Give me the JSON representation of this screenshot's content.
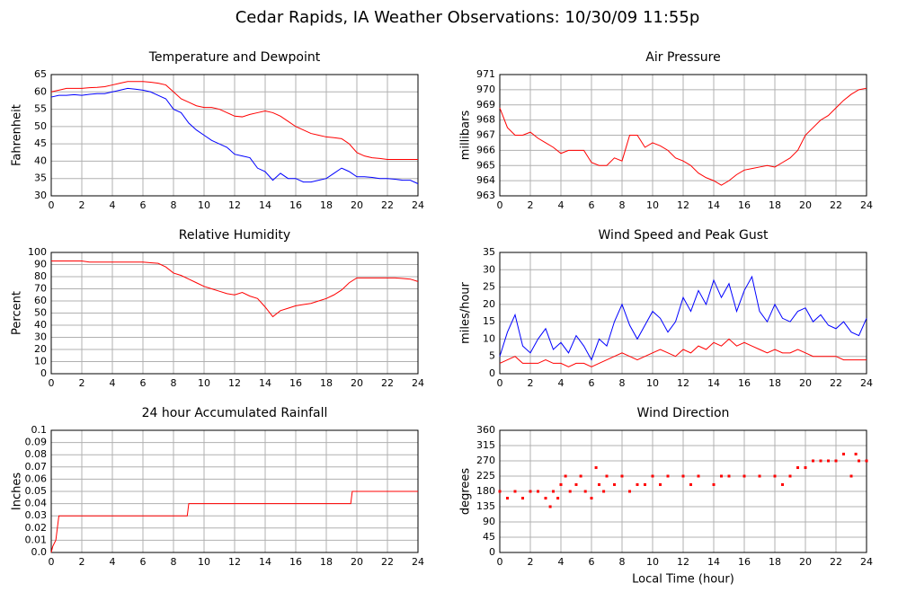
{
  "title": "Cedar Rapids, IA Weather Observations: 10/30/09 11:55p",
  "chart_data": [
    {
      "type": "line",
      "title": "Temperature and Dewpoint",
      "ylabel": "Fahrenheit",
      "x": [
        0,
        0.5,
        1,
        1.5,
        2,
        2.5,
        3,
        3.5,
        4,
        4.5,
        5,
        5.5,
        6,
        6.5,
        7,
        7.5,
        8,
        8.5,
        9,
        9.5,
        10,
        10.5,
        11,
        11.5,
        12,
        12.5,
        13,
        13.5,
        14,
        14.5,
        15,
        15.5,
        16,
        16.5,
        17,
        17.5,
        18,
        18.5,
        19,
        19.5,
        20,
        20.5,
        21,
        21.5,
        22,
        22.5,
        23,
        23.5,
        24
      ],
      "series": [
        {
          "color": "#ff0000",
          "values": [
            60,
            60.5,
            61,
            61,
            61,
            61.2,
            61.3,
            61.5,
            62,
            62.5,
            63,
            63,
            63,
            62.8,
            62.5,
            62,
            60,
            58,
            57,
            56,
            55.5,
            55.5,
            55,
            54,
            53,
            52.8,
            53.5,
            54,
            54.5,
            54,
            53,
            51.5,
            50,
            49,
            48,
            47.5,
            47,
            46.8,
            46.5,
            45,
            42.5,
            41.5,
            41,
            40.8,
            40.5,
            40.5,
            40.5,
            40.5,
            40.5
          ]
        },
        {
          "color": "#0000ff",
          "values": [
            58.5,
            59,
            59,
            59.2,
            59,
            59.3,
            59.5,
            59.5,
            60,
            60.5,
            61,
            60.8,
            60.5,
            60,
            59,
            58,
            55,
            54,
            51,
            49,
            47.5,
            46,
            45,
            44,
            42,
            41.5,
            41,
            38,
            37,
            34.5,
            36.5,
            35,
            35,
            34,
            34,
            34.5,
            35,
            36.5,
            38,
            37,
            35.5,
            35.5,
            35.3,
            35,
            35,
            34.8,
            34.5,
            34.5,
            33.5
          ]
        }
      ],
      "xlim": [
        0,
        24
      ],
      "xticks": [
        0,
        2,
        4,
        6,
        8,
        10,
        12,
        14,
        16,
        18,
        20,
        22,
        24
      ],
      "ylim": [
        30,
        65
      ],
      "yticks": [
        30,
        35,
        40,
        45,
        50,
        55,
        60,
        65
      ],
      "grid": true
    },
    {
      "type": "line",
      "title": "Air Pressure",
      "ylabel": "millibars",
      "x": [
        0,
        0.5,
        1,
        1.5,
        2,
        2.5,
        3,
        3.5,
        4,
        4.5,
        5,
        5.5,
        6,
        6.5,
        7,
        7.5,
        8,
        8.5,
        9,
        9.5,
        10,
        10.5,
        11,
        11.5,
        12,
        12.5,
        13,
        13.5,
        14,
        14.5,
        15,
        15.5,
        16,
        16.5,
        17,
        17.5,
        18,
        18.5,
        19,
        19.5,
        20,
        20.5,
        21,
        21.5,
        22,
        22.5,
        23,
        23.5,
        24
      ],
      "series": [
        {
          "color": "#ff0000",
          "values": [
            968.8,
            967.5,
            967,
            967,
            967.2,
            966.8,
            966.5,
            966.2,
            965.8,
            966,
            966,
            966,
            965.2,
            965,
            965,
            965.5,
            965.3,
            967,
            967,
            966.2,
            966.5,
            966.3,
            966,
            965.5,
            965.3,
            965,
            964.5,
            964.2,
            964,
            963.7,
            964,
            964.4,
            964.7,
            964.8,
            964.9,
            965,
            964.9,
            965.2,
            965.5,
            966,
            967,
            967.5,
            968,
            968.3,
            968.8,
            969.3,
            969.7,
            970,
            970.1
          ]
        }
      ],
      "xlim": [
        0,
        24
      ],
      "xticks": [
        0,
        2,
        4,
        6,
        8,
        10,
        12,
        14,
        16,
        18,
        20,
        22,
        24
      ],
      "ylim": [
        963,
        971
      ],
      "yticks": [
        963,
        964,
        965,
        966,
        967,
        968,
        969,
        970,
        971
      ],
      "grid": true
    },
    {
      "type": "line",
      "title": "Relative Humidity",
      "ylabel": "Percent",
      "x": [
        0,
        0.5,
        1,
        1.5,
        2,
        2.5,
        3,
        3.5,
        4,
        4.5,
        5,
        5.5,
        6,
        6.5,
        7,
        7.5,
        8,
        8.5,
        9,
        9.5,
        10,
        10.5,
        11,
        11.5,
        12,
        12.5,
        13,
        13.5,
        14,
        14.5,
        15,
        15.5,
        16,
        16.5,
        17,
        17.5,
        18,
        18.5,
        19,
        19.5,
        20,
        20.5,
        21,
        21.5,
        22,
        22.5,
        23,
        23.5,
        24
      ],
      "series": [
        {
          "color": "#ff0000",
          "values": [
            93,
            93,
            93,
            93,
            93,
            92,
            92,
            92,
            92,
            92,
            92,
            92,
            92,
            91.5,
            91,
            88,
            83,
            81,
            78,
            75,
            72,
            70,
            68,
            66,
            65,
            67,
            64,
            62,
            55,
            47,
            52,
            54,
            56,
            57,
            58,
            60,
            62,
            65,
            69,
            75,
            79,
            79,
            79,
            79,
            79,
            79,
            78.5,
            78,
            76
          ]
        }
      ],
      "xlim": [
        0,
        24
      ],
      "xticks": [
        0,
        2,
        4,
        6,
        8,
        10,
        12,
        14,
        16,
        18,
        20,
        22,
        24
      ],
      "ylim": [
        0,
        100
      ],
      "yticks": [
        0,
        10,
        20,
        30,
        40,
        50,
        60,
        70,
        80,
        90,
        100
      ],
      "grid": true
    },
    {
      "type": "line",
      "title": "Wind Speed and Peak Gust",
      "ylabel": "miles/hour",
      "x": [
        0,
        0.5,
        1,
        1.5,
        2,
        2.5,
        3,
        3.5,
        4,
        4.5,
        5,
        5.5,
        6,
        6.5,
        7,
        7.5,
        8,
        8.5,
        9,
        9.5,
        10,
        10.5,
        11,
        11.5,
        12,
        12.5,
        13,
        13.5,
        14,
        14.5,
        15,
        15.5,
        16,
        16.5,
        17,
        17.5,
        18,
        18.5,
        19,
        19.5,
        20,
        20.5,
        21,
        21.5,
        22,
        22.5,
        23,
        23.5,
        24
      ],
      "series": [
        {
          "color": "#0000ff",
          "values": [
            5,
            12,
            17,
            8,
            6,
            10,
            13,
            7,
            9,
            6,
            11,
            8,
            4,
            10,
            8,
            15,
            20,
            14,
            10,
            14,
            18,
            16,
            12,
            15,
            22,
            18,
            24,
            20,
            27,
            22,
            26,
            18,
            24,
            28,
            18,
            15,
            20,
            16,
            15,
            18,
            19,
            15,
            17,
            14,
            13,
            15,
            12,
            11,
            16
          ]
        },
        {
          "color": "#ff0000",
          "values": [
            3,
            4,
            5,
            3,
            3,
            3,
            4,
            3,
            3,
            2,
            3,
            3,
            2,
            3,
            4,
            5,
            6,
            5,
            4,
            5,
            6,
            7,
            6,
            5,
            7,
            6,
            8,
            7,
            9,
            8,
            10,
            8,
            9,
            8,
            7,
            6,
            7,
            6,
            6,
            7,
            6,
            5,
            5,
            5,
            5,
            4,
            4,
            4,
            4
          ]
        }
      ],
      "xlim": [
        0,
        24
      ],
      "xticks": [
        0,
        2,
        4,
        6,
        8,
        10,
        12,
        14,
        16,
        18,
        20,
        22,
        24
      ],
      "ylim": [
        0,
        35
      ],
      "yticks": [
        0,
        5,
        10,
        15,
        20,
        25,
        30,
        35
      ],
      "grid": true
    },
    {
      "type": "line",
      "title": "24 hour Accumulated Rainfall",
      "ylabel": "Inches",
      "x": [
        0,
        0.1,
        0.3,
        0.5,
        8.9,
        9.0,
        19.6,
        19.7,
        24
      ],
      "series": [
        {
          "color": "#ff0000",
          "values": [
            0,
            0.005,
            0.01,
            0.03,
            0.03,
            0.04,
            0.04,
            0.05,
            0.05
          ]
        }
      ],
      "xlim": [
        0,
        24
      ],
      "xticks": [
        0,
        2,
        4,
        6,
        8,
        10,
        12,
        14,
        16,
        18,
        20,
        22,
        24
      ],
      "ylim": [
        0,
        0.1
      ],
      "yticks": [
        {
          "value": 0,
          "label": "0.0"
        },
        0.01,
        0.02,
        0.03,
        0.04,
        0.05,
        0.06,
        0.07,
        0.08,
        0.09,
        0.1
      ],
      "grid": true
    },
    {
      "type": "scatter",
      "title": "Wind Direction",
      "ylabel": "degrees",
      "xlabel": "Local Time (hour)",
      "x": [
        0,
        0.5,
        1,
        1.5,
        2,
        2.5,
        3,
        3.3,
        3.5,
        3.8,
        4,
        4.3,
        4.6,
        5,
        5.3,
        5.6,
        6,
        6.3,
        6.5,
        6.8,
        7,
        7.5,
        8,
        8.5,
        9,
        9.5,
        10,
        10.5,
        11,
        12,
        12.5,
        13,
        14,
        14.5,
        15,
        16,
        17,
        18,
        18.5,
        19,
        19.5,
        20,
        20.5,
        21,
        21.5,
        22,
        22.5,
        23,
        23.3,
        23.5,
        24
      ],
      "series": [
        {
          "color": "#ff0000",
          "values": [
            180,
            160,
            180,
            160,
            180,
            180,
            160,
            135,
            180,
            160,
            200,
            225,
            180,
            200,
            225,
            180,
            160,
            250,
            200,
            180,
            225,
            200,
            225,
            180,
            200,
            200,
            225,
            200,
            225,
            225,
            200,
            225,
            200,
            225,
            225,
            225,
            225,
            225,
            200,
            225,
            250,
            250,
            270,
            270,
            270,
            270,
            290,
            225,
            290,
            270,
            270
          ]
        }
      ],
      "xlim": [
        0,
        24
      ],
      "xticks": [
        0,
        2,
        4,
        6,
        8,
        10,
        12,
        14,
        16,
        18,
        20,
        22,
        24
      ],
      "ylim": [
        0,
        360
      ],
      "yticks": [
        0,
        45,
        90,
        135,
        180,
        225,
        270,
        315,
        360
      ],
      "grid": true
    }
  ]
}
